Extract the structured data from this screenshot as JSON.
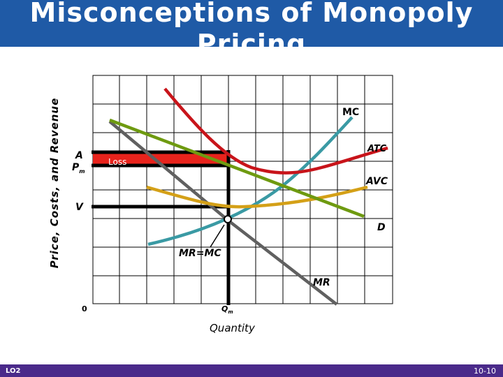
{
  "title": "Misconceptions of Monopoly Pricing",
  "footer": {
    "left": "LO2",
    "right": "10-10"
  },
  "axes": {
    "ylabel": "Price, Costs, and Revenue",
    "xlabel": "Quantity",
    "origin": "0",
    "qm_main": "Q",
    "qm_sub": "m"
  },
  "price_labels": {
    "A": "A",
    "Pm_main": "P",
    "Pm_sub": "m",
    "V": "V"
  },
  "region": {
    "loss": "Loss"
  },
  "curves": {
    "MC": "MC",
    "ATC": "ATC",
    "AVC": "AVC",
    "D": "D",
    "MR": "MR",
    "equilibrium": "MR=MC"
  },
  "colors": {
    "title_bar": "#1f5aa6",
    "footer_bar": "#4a2a8a",
    "MC": "#3a9aa4",
    "ATC": "#c8141a",
    "AVC": "#d4a017",
    "D": "#6e9a10",
    "MR": "#606060",
    "loss_fill": "#e8231c"
  }
}
